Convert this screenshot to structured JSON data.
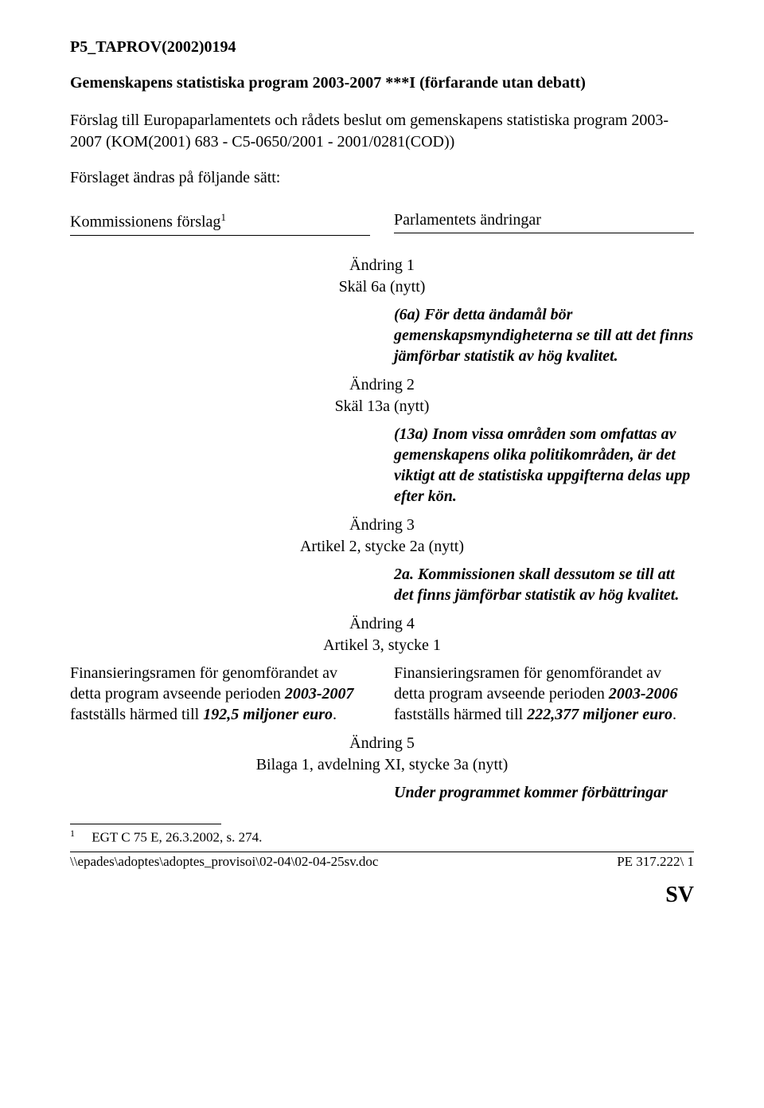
{
  "doc_id": "P5_TAPROV(2002)0194",
  "title": "Gemenskapens statistiska program 2003-2007 ***I (förfarande utan debatt)",
  "proposal": "Förslag till Europaparlamentets och rådets beslut om gemenskapens statistiska program 2003-2007 (KOM(2001) 683 - C5-0650/2001 - 2001/0281(COD))",
  "amended": "Förslaget ändras på följande sätt:",
  "cols": {
    "left": "Kommissionens förslag",
    "right": "Parlamentets ändringar",
    "left_sup": "1"
  },
  "amendments": [
    {
      "heading": "Ändring 1\nSkäl 6a (nytt)",
      "left": "",
      "right": "(6a) För detta ändamål bör gemenskapsmyndigheterna se till att det finns jämförbar statistik av hög kvalitet."
    },
    {
      "heading": "Ändring 2\nSkäl 13a (nytt)",
      "left": "",
      "right": "(13a) Inom vissa områden som omfattas av gemenskapens olika politikområden, är det viktigt att de statistiska uppgifterna delas upp efter kön."
    },
    {
      "heading": "Ändring 3\nArtikel 2, stycke 2a (nytt)",
      "left": "",
      "right": "2a. Kommissionen skall dessutom se till att det finns jämförbar statistik av hög kvalitet."
    },
    {
      "heading": "Ändring 4\nArtikel 3, stycke 1",
      "left_parts": {
        "pre": "Finansieringsramen för genomförandet av detta program avseende perioden ",
        "b1": "2003-2007",
        "mid": " fastställs härmed till ",
        "b2": "192,5 miljoner euro",
        "post": "."
      },
      "right_parts": {
        "pre": "Finansieringsramen för genomförandet av detta program avseende perioden ",
        "b1": "2003-2006",
        "mid": " fastställs härmed till ",
        "b2": "222,377 miljoner euro",
        "post": "."
      }
    },
    {
      "heading": "Ändring 5\nBilaga 1, avdelning XI, stycke 3a (nytt)",
      "left": "",
      "right": "Under programmet kommer förbättringar"
    }
  ],
  "footnote": {
    "num": "1",
    "text": "EGT C 75 E, 26.3.2002, s. 274."
  },
  "footer": {
    "left": "\\\\epades\\adoptes\\adoptes_provisoi\\02-04\\02-04-25sv.doc",
    "right": "PE 317.222\\ 1"
  },
  "lang": "SV"
}
